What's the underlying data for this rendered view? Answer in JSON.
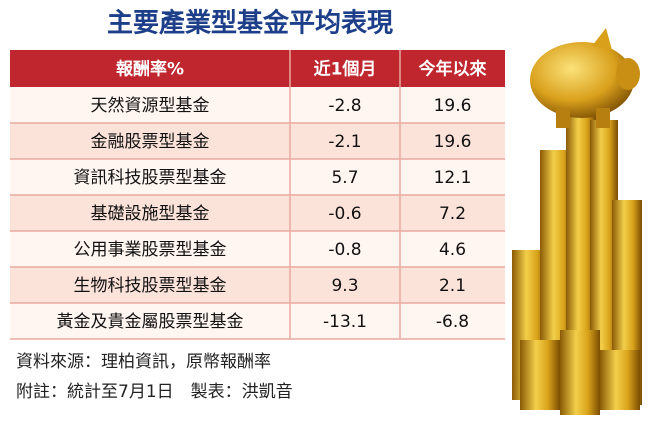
{
  "title": "主要產業型基金平均表現",
  "table": {
    "header": [
      "報酬率%",
      "近1個月",
      "今年以來"
    ],
    "rows": [
      [
        "天然資源型基金",
        "-2.8",
        "19.6"
      ],
      [
        "金融股票型基金",
        "-2.1",
        "19.6"
      ],
      [
        "資訊科技股票型基金",
        "5.7",
        "12.1"
      ],
      [
        "基礎設施型基金",
        "-0.6",
        "7.2"
      ],
      [
        "公用事業股票型基金",
        "-0.8",
        "4.6"
      ],
      [
        "生物科技股票型基金",
        "9.3",
        "2.1"
      ],
      [
        "黃金及貴金屬股票型基金",
        "-13.1",
        "-6.8"
      ]
    ]
  },
  "footer": {
    "source": "資料來源：理柏資訊，原幣報酬率",
    "note": "附註：統計至7月1日　製表：洪凱音"
  }
}
